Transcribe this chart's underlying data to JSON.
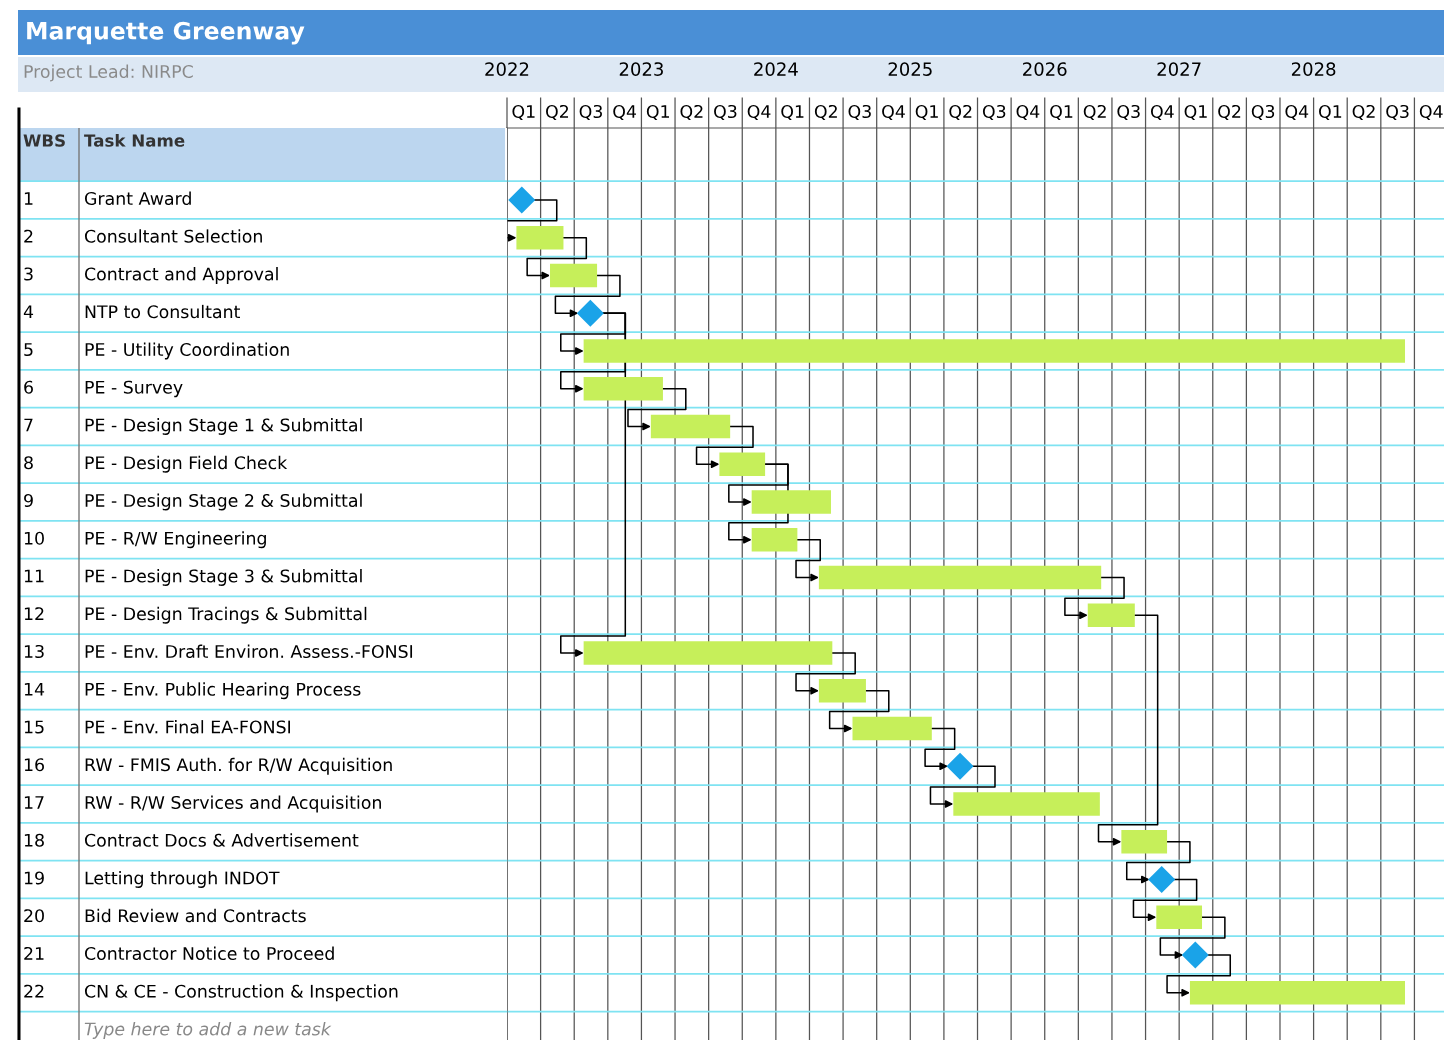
{
  "chart_data": {
    "type": "bar",
    "orientation": "horizontal",
    "title": "Marquette Greenway",
    "subtitle": "Project Lead: NIRPC",
    "ylabel": "Task Name",
    "categories": [
      "Grant Award",
      "Consultant Selection",
      "Contract and Approval",
      "NTP to Consultant",
      "PE - Utility Coordination",
      "PE - Survey",
      "PE - Design Stage 1 & Submittal",
      "PE - Design Field Check",
      "PE - Design Stage 2 & Submittal",
      "PE - R/W Engineering",
      "PE - Design Stage 3 & Submittal",
      "PE - Design Tracings & Submittal",
      "PE - Env. Draft Environ. Assess.-FONSI",
      "PE - Env. Public Hearing Process",
      "PE - Env. Final EA-FONSI",
      "RW - FMIS Auth. for R/W Acquisition",
      "RW - R/W Services and Acquisition",
      "Contract Docs & Advertisement",
      "Letting through INDOT",
      "Bid Review and Contracts",
      "Contractor Notice to Proceed",
      "CN & CE - Construction & Inspection"
    ],
    "series": [
      {
        "type": "bar",
        "color": "#c6ef5a",
        "base": [
          null,
          2022.07,
          2022.32,
          null,
          2022.57,
          2022.57,
          2023.07,
          2023.58,
          2023.82,
          2023.82,
          2024.32,
          2026.32,
          2022.57,
          2024.32,
          2024.57,
          null,
          2025.32,
          2026.57,
          null,
          2026.83,
          null,
          2027.08
        ],
        "values": [
          null,
          0.35,
          0.35,
          null,
          6.11,
          0.59,
          0.59,
          0.34,
          0.59,
          0.34,
          2.1,
          0.35,
          1.85,
          0.35,
          0.59,
          null,
          1.09,
          0.34,
          null,
          0.34,
          null,
          1.6
        ]
      },
      {
        "type": "scatter",
        "color": "#1aa3e8",
        "marker": "diamond",
        "values": [
          2022.11,
          null,
          null,
          2022.62,
          null,
          null,
          null,
          null,
          null,
          null,
          null,
          null,
          null,
          null,
          null,
          2025.37,
          null,
          null,
          2026.87,
          null,
          2027.12,
          null
        ]
      }
    ],
    "xlim": [
      2022.0,
      2028.97
    ],
    "xticks": [
      2022,
      {
        "value": 2022.25,
        "label": null
      },
      {
        "value": 2022.5,
        "label": null
      },
      {
        "value": 2022.75,
        "label": null
      },
      2023,
      {
        "value": 2023.25,
        "label": null
      },
      {
        "value": 2023.5,
        "label": null
      },
      {
        "value": 2023.75,
        "label": null
      },
      2024,
      {
        "value": 2024.25,
        "label": null
      },
      {
        "value": 2024.5,
        "label": null
      },
      {
        "value": 2024.75,
        "label": null
      },
      2025,
      {
        "value": 2025.25,
        "label": null
      },
      {
        "value": 2025.5,
        "label": null
      },
      {
        "value": 2025.75,
        "label": null
      },
      2026,
      {
        "value": 2026.25,
        "label": null
      },
      {
        "value": 2026.5,
        "label": null
      },
      {
        "value": 2026.75,
        "label": null
      },
      2027,
      {
        "value": 2027.25,
        "label": null
      },
      {
        "value": 2027.5,
        "label": null
      },
      {
        "value": 2027.75,
        "label": null
      },
      2028,
      {
        "value": 2028.25,
        "label": null
      },
      {
        "value": 2028.5,
        "label": null
      },
      {
        "value": 2028.75,
        "label": null
      }
    ],
    "grid": true,
    "annotations": [
      "WBS",
      "1",
      "2",
      "3",
      "4",
      "5",
      "6",
      "7",
      "8",
      "9",
      "10",
      "11",
      "12",
      "13",
      "14",
      "15",
      "16",
      "17",
      "18",
      "19",
      "20",
      "21",
      "22",
      "Type here to add a new task",
      "Q1",
      "Q2",
      "Q3",
      "Q4",
      "Q1",
      "Q2",
      "Q3",
      "Q4",
      "Q1",
      "Q2",
      "Q3",
      "Q4",
      "Q1",
      "Q2",
      "Q3",
      "Q4",
      "Q1",
      "Q2",
      "Q3",
      "Q4",
      "Q1",
      "Q2",
      "Q3",
      "Q4",
      "Q1",
      "Q2",
      "Q3",
      "Q4"
    ]
  }
}
